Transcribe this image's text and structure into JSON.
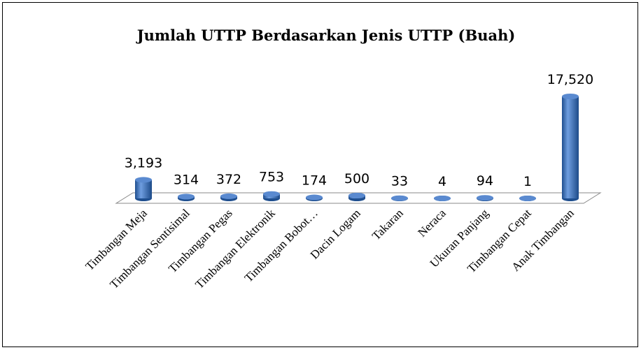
{
  "chart_data": {
    "type": "bar",
    "title": "Jumlah UTTP Berdasarkan Jenis UTTP (Buah)",
    "categories": [
      "Timbangan Meja",
      "Timbangan Sentisimal",
      "Timbangan Pegas",
      "Timbangan Elektronik",
      "Timbangan Bobot…",
      "Dacin Logam",
      "Takaran",
      "Neraca",
      "Ukuran Panjang",
      "Timbangan Cepat",
      "Anak Timbangan"
    ],
    "values": [
      3193,
      314,
      372,
      753,
      174,
      500,
      33,
      4,
      94,
      1,
      17520
    ],
    "value_labels": [
      "3,193",
      "314",
      "372",
      "753",
      "174",
      "500",
      "33",
      "4",
      "94",
      "1",
      "17,520"
    ],
    "color": "#3b6fb6"
  }
}
